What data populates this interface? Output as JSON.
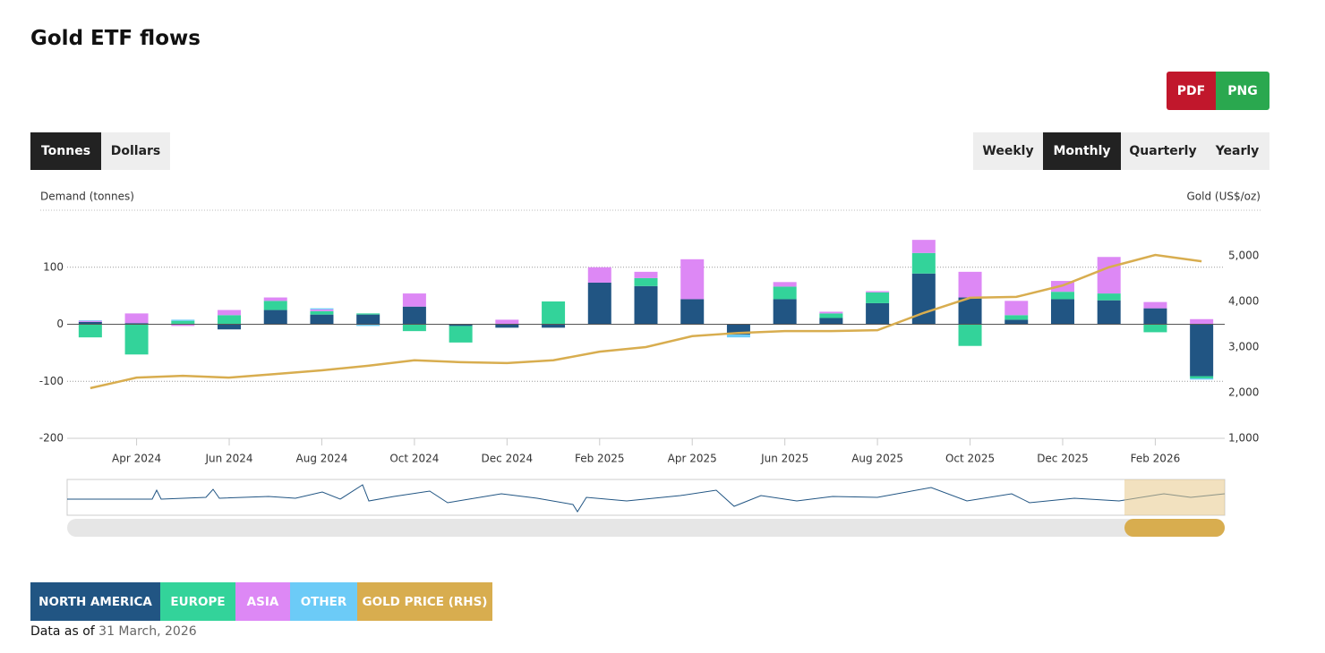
{
  "title": "Gold ETF flows",
  "export_buttons": [
    "PDF",
    "PNG"
  ],
  "unit_toggle": [
    "Tonnes",
    "Dollars"
  ],
  "period_toggle": [
    "Weekly",
    "Monthly",
    "Quarterly",
    "Yearly"
  ],
  "chart_data": {
    "type": "bar",
    "stacked": true,
    "y_label": "Demand (tonnes)",
    "y2_label": "Gold (US$/oz)",
    "categories": [
      null,
      "Apr 2024",
      null,
      "Jun 2024",
      null,
      "Aug 2024",
      null,
      "Oct 2024",
      null,
      "Dec 2024",
      null,
      "Feb 2025",
      null,
      "Apr 2025",
      null,
      "Jun 2025",
      null,
      "Aug 2025",
      null,
      "Oct 2025",
      null,
      "Dec 2025",
      null,
      "Feb 2026",
      null
    ],
    "ylim": [
      -200,
      200
    ],
    "yticks": [
      -200,
      -100,
      0,
      100
    ],
    "y2lim": [
      1000,
      6000
    ],
    "y2ticks": [
      {
        "value": 1000,
        "label": "1,000"
      },
      {
        "value": 2000,
        "label": "2,000"
      },
      {
        "value": 3000,
        "label": "3,000"
      },
      {
        "value": 4000,
        "label": "4,000"
      },
      {
        "value": 5000,
        "label": "5,000"
      }
    ],
    "grid": true,
    "series": [
      {
        "name": "NORTH AMERICA",
        "color": "#215583",
        "values": [
          4,
          2,
          1,
          -9,
          25,
          17,
          17,
          31,
          -3,
          -6,
          -6,
          73,
          67,
          44,
          -18,
          44,
          11,
          37,
          89,
          47,
          8,
          44,
          42,
          28,
          -91
        ]
      },
      {
        "name": "EUROPE",
        "color": "#33d39a",
        "values": [
          -23,
          -53,
          5,
          16,
          16,
          6,
          2,
          -12,
          -29,
          0,
          40,
          0,
          14,
          0,
          0,
          22,
          8,
          19,
          36,
          -38,
          8,
          13,
          12,
          -14,
          -4
        ]
      },
      {
        "name": "ASIA",
        "color": "#dd88f5",
        "values": [
          2,
          17,
          -3,
          9,
          6,
          3,
          0,
          23,
          0,
          8,
          0,
          27,
          11,
          70,
          0,
          8,
          3,
          2,
          23,
          45,
          25,
          19,
          64,
          11,
          9
        ]
      },
      {
        "name": "OTHER",
        "color": "#6ccbf7",
        "values": [
          1,
          0,
          2,
          0,
          0,
          2,
          -3,
          0,
          0,
          0,
          0,
          0,
          0,
          0,
          -5,
          0,
          0,
          0,
          0,
          0,
          0,
          0,
          0,
          0,
          -2
        ]
      },
      {
        "name": "GOLD PRICE (RHS)",
        "color": "#d8ad4f",
        "type": "line",
        "axis": "y2",
        "values": [
          2100,
          2330,
          2370,
          2330,
          2410,
          2490,
          2590,
          2710,
          2670,
          2650,
          2710,
          2900,
          3000,
          3240,
          3310,
          3350,
          3350,
          3370,
          3750,
          4080,
          4100,
          4350,
          4750,
          5020,
          4880
        ]
      }
    ]
  },
  "footer": {
    "label": "Data as of",
    "date": "31 March, 2026"
  }
}
